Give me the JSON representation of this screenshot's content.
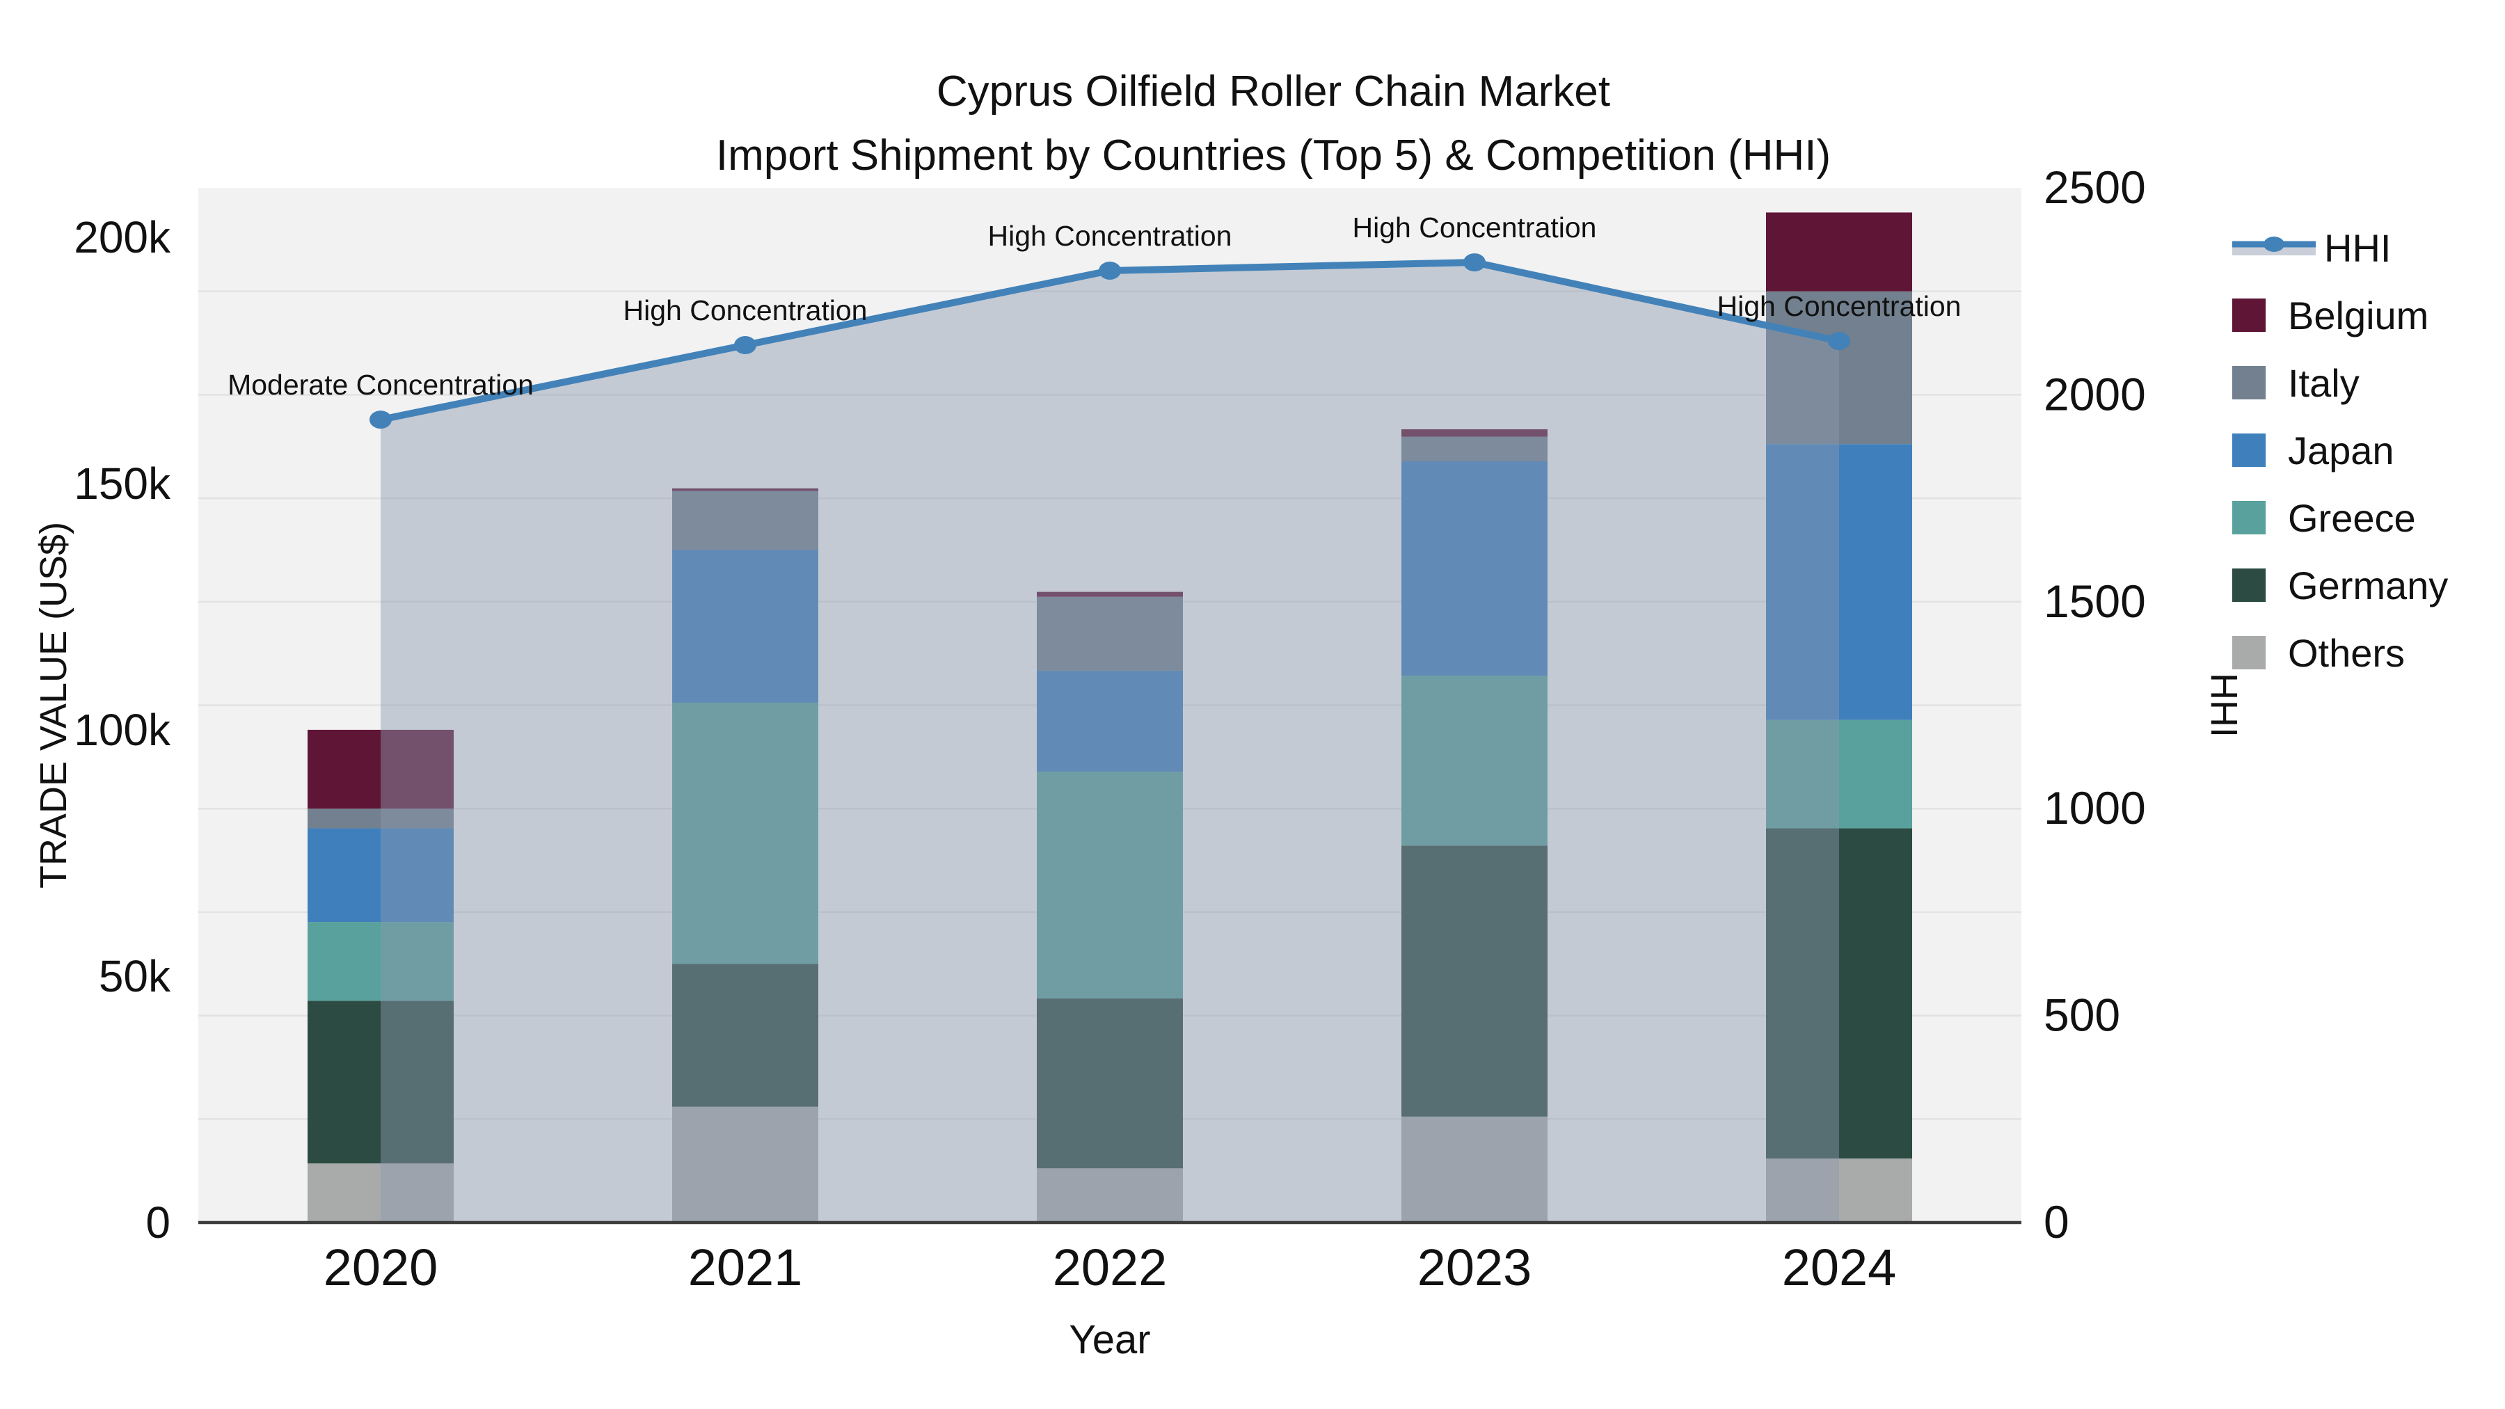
{
  "title": {
    "line1": "Cyprus Oilfield Roller Chain Market",
    "line2": "Import Shipment by Countries (Top 5) & Competition (HHI)"
  },
  "axes": {
    "x": {
      "title": "Year",
      "tick_labels": [
        "2020",
        "2021",
        "2022",
        "2023",
        "2024"
      ]
    },
    "y_left": {
      "title": "TRADE VALUE (US$)",
      "tick_labels": [
        "0",
        "50k",
        "100k",
        "150k",
        "200k"
      ],
      "tick_values": [
        0,
        50000,
        100000,
        150000,
        200000
      ],
      "axis_max": 210000
    },
    "y_right": {
      "title": "HHI",
      "tick_labels": [
        "0",
        "500",
        "1000",
        "1500",
        "2000",
        "2500"
      ],
      "tick_values": [
        0,
        500,
        1000,
        1500,
        2000,
        2500
      ],
      "axis_max": 2500
    }
  },
  "legend": {
    "items": [
      {
        "label": "HHI",
        "kind": "line"
      },
      {
        "label": "Belgium",
        "kind": "swatch",
        "series": "Belgium"
      },
      {
        "label": "Italy",
        "kind": "swatch",
        "series": "Italy"
      },
      {
        "label": "Japan",
        "kind": "swatch",
        "series": "Japan"
      },
      {
        "label": "Greece",
        "kind": "swatch",
        "series": "Greece"
      },
      {
        "label": "Germany",
        "kind": "swatch",
        "series": "Germany"
      },
      {
        "label": "Others",
        "kind": "swatch",
        "series": "Others"
      }
    ]
  },
  "chart_data": {
    "type": "bar",
    "subtype": "stacked-bars-with-line-overlay",
    "categories": [
      "2020",
      "2021",
      "2022",
      "2023",
      "2024"
    ],
    "stack_order_bottom_to_top": [
      "Others",
      "Germany",
      "Greece",
      "Japan",
      "Italy",
      "Belgium"
    ],
    "series": [
      {
        "name": "Others",
        "values": [
          12000,
          23500,
          11000,
          21500,
          13000
        ]
      },
      {
        "name": "Germany",
        "values": [
          33000,
          29000,
          34500,
          55000,
          67000
        ]
      },
      {
        "name": "Greece",
        "values": [
          16000,
          53000,
          46000,
          34500,
          22000
        ]
      },
      {
        "name": "Japan",
        "values": [
          19000,
          31000,
          20500,
          43500,
          56000
        ]
      },
      {
        "name": "Italy",
        "values": [
          4000,
          12000,
          15000,
          5000,
          31000
        ]
      },
      {
        "name": "Belgium",
        "values": [
          16000,
          500,
          1000,
          1500,
          16000
        ]
      }
    ],
    "bar_totals": [
      100000,
      149000,
      128000,
      161000,
      205000
    ],
    "line_series": {
      "name": "HHI",
      "axis": "right",
      "values": [
        1940,
        2120,
        2300,
        2320,
        2130
      ],
      "area_fill": true
    },
    "annotations": [
      "Moderate Concentration",
      "High Concentration",
      "High Concentration",
      "High Concentration",
      "High Concentration"
    ],
    "title": "Cyprus Oilfield Roller Chain Market — Import Shipment by Countries (Top 5) & Competition (HHI)",
    "xlabel": "Year",
    "ylabel_left": "TRADE VALUE (US$)",
    "ylabel_right": "HHI",
    "ylim_left": [
      0,
      210000
    ],
    "ylim_right": [
      0,
      2500
    ],
    "grid": "horizontal, every 250 HHI units",
    "legend_position": "right"
  },
  "colors": {
    "Belgium": "#5f1536",
    "Italy": "#72808f",
    "Japan": "#3f80bc",
    "Greece": "#59a19c",
    "Germany": "#2c4b42",
    "Others": "#a9abaa",
    "hhi_line": "#4282b8",
    "area_fill": "rgba(139,154,176,0.45)",
    "area_fill_solid": "#c9ced8",
    "plot_bg": "#f2f2f2",
    "grid_line": "#e2e2e2",
    "axis_line": "#3d3d3d",
    "text": "#111111"
  }
}
